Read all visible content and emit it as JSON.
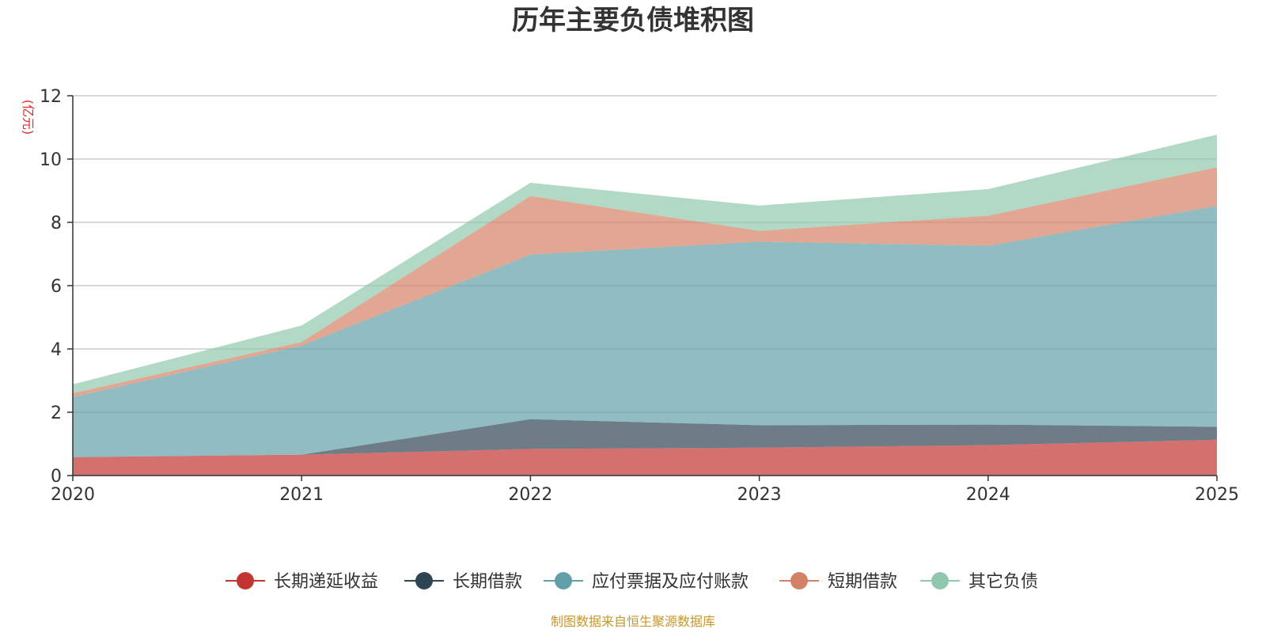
{
  "chart_data": {
    "type": "area",
    "stacked": true,
    "title": "历年主要负债堆积图",
    "ylabel": "(亿元)",
    "xlabel": "",
    "categories": [
      "2020",
      "2021",
      "2022",
      "2023",
      "2024",
      "2025"
    ],
    "ylim": [
      0,
      12
    ],
    "yticks": [
      "0",
      "2",
      "4",
      "6",
      "8",
      "10",
      "12"
    ],
    "grid": true,
    "legend_position": "bottom",
    "series": [
      {
        "name": "长期递延收益",
        "color": "#c23531",
        "values": [
          0.58,
          0.66,
          0.84,
          0.88,
          0.96,
          1.13
        ]
      },
      {
        "name": "长期借款",
        "color": "#2f4554",
        "values": [
          0.0,
          0.0,
          0.94,
          0.71,
          0.65,
          0.41
        ]
      },
      {
        "name": "应付票据及应付账款",
        "color": "#61a0a8",
        "values": [
          1.9,
          3.45,
          5.2,
          5.8,
          5.65,
          6.98
        ]
      },
      {
        "name": "短期借款",
        "color": "#d48265",
        "values": [
          0.12,
          0.11,
          1.85,
          0.34,
          0.95,
          1.22
        ]
      },
      {
        "name": "其它负债",
        "color": "#91c7ae",
        "values": [
          0.28,
          0.52,
          0.42,
          0.8,
          0.84,
          1.03
        ]
      }
    ],
    "source": "制图数据来自恒生聚源数据库"
  }
}
